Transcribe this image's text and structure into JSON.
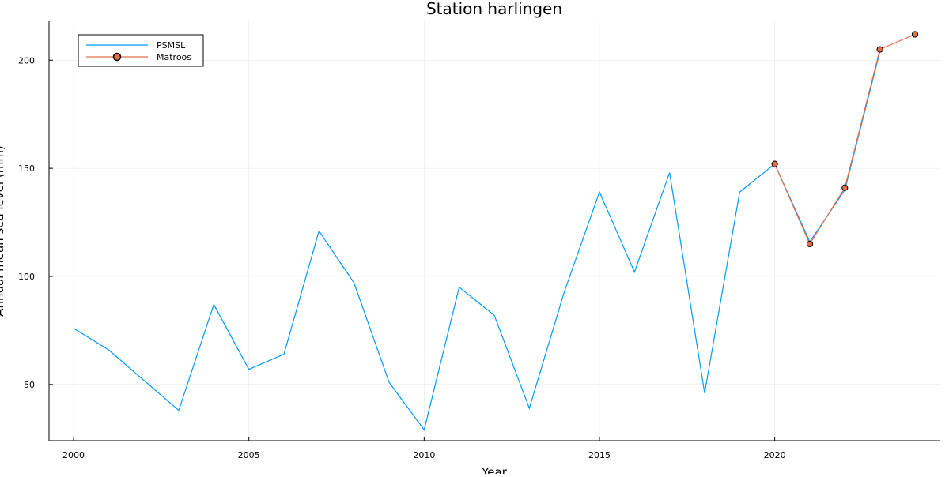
{
  "chart_data": {
    "type": "line",
    "title": "Station harlingen",
    "xlabel": "Year",
    "ylabel": "Annual mean sea level (mm)",
    "xlim": [
      1999.3,
      2024.7
    ],
    "ylim": [
      24,
      218
    ],
    "xticks": [
      2000,
      2005,
      2010,
      2015,
      2020
    ],
    "yticks": [
      50,
      100,
      150,
      200
    ],
    "grid": true,
    "legend_position": "top-left",
    "series": [
      {
        "name": "PSMSL",
        "color": "#009AFA",
        "marker": "none",
        "x": [
          2000,
          2001,
          2002,
          2003,
          2004,
          2005,
          2006,
          2007,
          2008,
          2009,
          2010,
          2011,
          2012,
          2013,
          2014,
          2015,
          2016,
          2017,
          2018,
          2019,
          2020,
          2021,
          2022,
          2023
        ],
        "y": [
          76,
          66,
          52,
          38,
          87,
          57,
          64,
          121,
          97,
          51,
          29,
          95,
          82,
          39,
          93,
          139,
          102,
          148,
          46,
          139,
          152,
          116,
          140,
          204
        ]
      },
      {
        "name": "Matroos",
        "color": "#E26F46",
        "marker": "circle",
        "x": [
          2020,
          2021,
          2022,
          2023,
          2024
        ],
        "y": [
          152,
          115,
          141,
          205,
          212
        ]
      }
    ]
  }
}
